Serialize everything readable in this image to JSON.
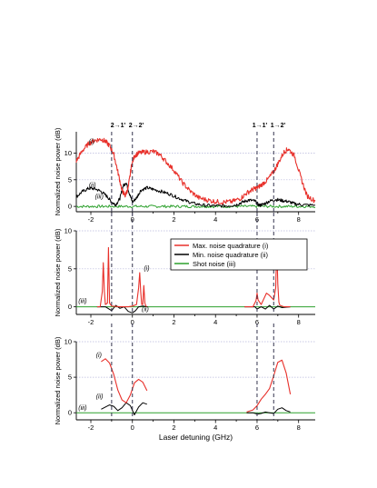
{
  "colors": {
    "max": "#e8302a",
    "min": "#000000",
    "shot": "#2ca02c",
    "marker": "#33334d",
    "grid": "#b9b9dd"
  },
  "transitions": [
    "2→1'",
    "2→2'",
    "1→1'",
    "1→2'"
  ],
  "legend": {
    "max": "Max. noise quadrature (i)",
    "min": "Min. noise quadrature (ii)",
    "shot": "Shot noise (iii)"
  },
  "chart_data": [
    {
      "type": "line",
      "ylabel": "Normalized noise power (dB)",
      "xlim": [
        -2.7,
        8.8
      ],
      "ylim": [
        -1,
        14
      ],
      "xticks": [
        -2,
        0,
        2,
        4,
        6,
        8
      ],
      "yticks": [
        0,
        5,
        10
      ],
      "grid": "horizontal dotted",
      "vlines": [
        -1.0,
        0.0,
        6.0,
        6.8
      ],
      "annotations": [
        {
          "text": "(i)",
          "x": -2.1,
          "y": 11.8
        },
        {
          "text": "(ii)",
          "x": -2.1,
          "y": 3.6
        },
        {
          "text": "(iii)",
          "x": -1.8,
          "y": 1.5
        }
      ],
      "series": [
        {
          "key": "max",
          "x": [
            -2.7,
            -2.4,
            -2.1,
            -1.8,
            -1.5,
            -1.3,
            -1.1,
            -0.9,
            -0.7,
            -0.5,
            -0.35,
            -0.2,
            -0.05,
            0.1,
            0.3,
            0.6,
            1.0,
            1.3,
            1.6,
            2.0,
            2.4,
            2.8,
            3.2,
            3.6,
            4.0,
            4.4,
            4.8,
            5.2,
            5.5,
            5.8,
            6.0,
            6.2,
            6.5,
            6.8,
            7.0,
            7.3,
            7.5,
            7.8,
            8.1,
            8.4,
            8.8
          ],
          "y": [
            8.5,
            10.5,
            11.8,
            12.4,
            12.6,
            12.2,
            11.4,
            9.8,
            6.5,
            3.0,
            2.0,
            3.5,
            7.5,
            9.5,
            10.0,
            10.2,
            10.3,
            9.8,
            8.5,
            6.8,
            4.5,
            2.8,
            1.6,
            1.2,
            0.9,
            0.8,
            0.9,
            1.5,
            2.5,
            3.2,
            3.5,
            4.0,
            5.0,
            6.5,
            8.0,
            10.2,
            10.8,
            9.5,
            5.5,
            2.0,
            1.0
          ]
        },
        {
          "key": "min",
          "x": [
            -2.7,
            -2.4,
            -2.1,
            -1.8,
            -1.5,
            -1.2,
            -1.0,
            -0.8,
            -0.6,
            -0.45,
            -0.3,
            -0.15,
            0.0,
            0.2,
            0.4,
            0.7,
            1.0,
            1.4,
            1.8,
            2.2,
            2.6,
            3.0,
            3.5,
            4.0,
            4.5,
            5.0,
            5.3,
            5.6,
            5.9,
            6.1,
            6.3,
            6.6,
            6.9,
            7.2,
            7.5,
            7.8,
            8.2,
            8.8
          ],
          "y": [
            1.8,
            2.8,
            3.4,
            3.3,
            2.8,
            1.8,
            0.8,
            0.3,
            1.5,
            3.8,
            4.5,
            2.5,
            0.8,
            1.6,
            3.0,
            3.5,
            3.2,
            2.8,
            2.3,
            1.6,
            1.0,
            0.5,
            0.2,
            0.1,
            0.1,
            0.3,
            0.8,
            1.2,
            1.0,
            0.2,
            0.4,
            1.0,
            1.3,
            1.1,
            0.9,
            0.5,
            0.3,
            0.2
          ]
        },
        {
          "key": "shot",
          "x": [
            -2.7,
            8.8
          ],
          "y": [
            0.0,
            0.0
          ]
        }
      ]
    },
    {
      "type": "line",
      "ylabel": "Normalized noise power (dB)",
      "xlim": [
        -2.7,
        8.8
      ],
      "ylim": [
        -1,
        10
      ],
      "xticks": [
        -2,
        0,
        2,
        4,
        6,
        8
      ],
      "yticks": [
        0,
        5,
        10
      ],
      "grid": "horizontal dotted",
      "vlines": [
        -1.0,
        0.0,
        6.0,
        6.8
      ],
      "annotations": [
        {
          "text": "(i)",
          "x": 0.55,
          "y": 4.8
        },
        {
          "text": "(ii)",
          "x": 0.45,
          "y": -0.6
        },
        {
          "text": "(iii)",
          "x": -2.6,
          "y": 0.5
        }
      ],
      "series": [
        {
          "key": "max",
          "x": [
            -1.7,
            -1.55,
            -1.45,
            -1.4,
            -1.35,
            -1.3,
            -1.2,
            -1.15,
            -1.1,
            -1.0,
            -0.6,
            -0.2,
            0.0,
            0.2,
            0.3,
            0.35,
            0.4,
            0.45,
            0.5,
            0.55,
            0.6,
            0.65,
            0.7
          ],
          "y": [
            0.0,
            0.0,
            2.0,
            5.8,
            2.0,
            0.3,
            0.5,
            7.8,
            0.5,
            0.1,
            0.0,
            0.0,
            0.1,
            0.3,
            2.5,
            4.5,
            2.0,
            0.3,
            0.3,
            2.8,
            0.5,
            0.1,
            0.0
          ],
          "x2": [
            5.4,
            5.8,
            5.95,
            6.0,
            6.05,
            6.2,
            6.45,
            6.6,
            6.8,
            6.9,
            6.95,
            7.0,
            7.05,
            7.1,
            7.3,
            7.6
          ],
          "y2": [
            0.0,
            0.0,
            0.8,
            1.8,
            0.9,
            0.3,
            1.8,
            1.5,
            0.9,
            2.5,
            8.2,
            3.0,
            0.6,
            0.2,
            0.0,
            0.0
          ]
        },
        {
          "key": "min",
          "x": [
            -1.7,
            -1.3,
            -1.0,
            -0.8,
            -0.6,
            -0.4,
            -0.2,
            0.0,
            0.15,
            0.3,
            0.5,
            0.7
          ],
          "y": [
            0.0,
            0.0,
            -0.5,
            0.2,
            -0.2,
            0.0,
            -0.6,
            -0.8,
            -0.5,
            0.0,
            0.1,
            0.0
          ],
          "x2": [
            5.4,
            5.9,
            6.0,
            6.2,
            6.4,
            6.6,
            6.8,
            7.0,
            7.2,
            7.6
          ],
          "y2": [
            0.0,
            0.0,
            -0.3,
            0.0,
            -0.3,
            0.2,
            -0.3,
            0.1,
            -0.1,
            0.0
          ]
        },
        {
          "key": "shot",
          "x": [
            -2.7,
            8.8
          ],
          "y": [
            0.0,
            0.0
          ]
        }
      ]
    },
    {
      "type": "line",
      "ylabel": "Normalized noise power (dB)",
      "xlabel": "Laser detuning (GHz)",
      "xlim": [
        -2.7,
        8.8
      ],
      "ylim": [
        -1,
        10
      ],
      "xticks": [
        -2,
        0,
        2,
        4,
        6,
        8
      ],
      "yticks": [
        0,
        5,
        10
      ],
      "grid": "horizontal dotted",
      "vlines": [
        -1.0,
        0.0,
        6.0,
        6.8
      ],
      "annotations": [
        {
          "text": "(i)",
          "x": -1.75,
          "y": 7.8
        },
        {
          "text": "(ii)",
          "x": -1.75,
          "y": 2.0
        },
        {
          "text": "(iii)",
          "x": -2.6,
          "y": 0.4
        }
      ],
      "series": [
        {
          "key": "max",
          "x": [
            -1.5,
            -1.3,
            -1.1,
            -0.9,
            -0.7,
            -0.5,
            -0.3,
            -0.1,
            0.1,
            0.3,
            0.5,
            0.7
          ],
          "y": [
            7.2,
            7.6,
            7.0,
            5.4,
            3.2,
            1.8,
            1.4,
            2.5,
            4.2,
            4.7,
            4.3,
            3.1
          ],
          "x2": [
            5.5,
            5.8,
            6.0,
            6.2,
            6.4,
            6.6,
            6.8,
            7.0,
            7.2,
            7.4,
            7.6
          ],
          "y2": [
            0.1,
            0.4,
            1.0,
            1.9,
            2.6,
            3.4,
            5.2,
            7.1,
            7.4,
            5.6,
            2.6
          ]
        },
        {
          "key": "min",
          "x": [
            -1.5,
            -1.3,
            -1.1,
            -0.9,
            -0.7,
            -0.5,
            -0.3,
            -0.1,
            0.1,
            0.3,
            0.5,
            0.7
          ],
          "y": [
            0.5,
            0.8,
            1.1,
            0.9,
            0.3,
            0.7,
            1.4,
            1.0,
            -0.3,
            0.8,
            1.4,
            1.2
          ],
          "x2": [
            5.5,
            5.8,
            6.0,
            6.2,
            6.4,
            6.6,
            6.8,
            7.0,
            7.2,
            7.4,
            7.6
          ],
          "y2": [
            0.0,
            0.0,
            -0.2,
            -0.1,
            0.1,
            0.0,
            -0.1,
            0.5,
            0.7,
            0.3,
            0.1
          ]
        },
        {
          "key": "shot",
          "x": [
            -2.7,
            8.8
          ],
          "y": [
            0.0,
            0.0
          ]
        }
      ]
    }
  ]
}
